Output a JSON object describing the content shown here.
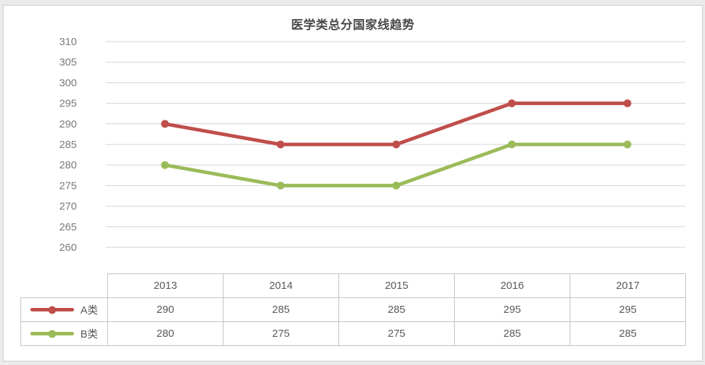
{
  "page": {
    "background_color": "#ebebeb",
    "panel_border_color": "#c9c9c9"
  },
  "chart_data": {
    "type": "line",
    "title": "医学类总分国家线趋势",
    "x": [
      "2013",
      "2014",
      "2015",
      "2016",
      "2017"
    ],
    "series": [
      {
        "name": "A类",
        "color": "#bf4e4b",
        "values": [
          290,
          285,
          285,
          295,
          295
        ]
      },
      {
        "name": "B类",
        "color": "#9bbb59",
        "values": [
          280,
          275,
          275,
          285,
          285
        ]
      }
    ],
    "ylim": [
      260,
      310
    ],
    "ytick_step": 5,
    "yticks": [
      310,
      305,
      300,
      295,
      290,
      285,
      280,
      275,
      270,
      265,
      260
    ],
    "grid": "horizontal-only",
    "gridline_color": "#d3d3d3",
    "axis_label_color": "#7a7a7a",
    "legend_position": "table-left-column",
    "xlabel": "",
    "ylabel": ""
  },
  "table": {
    "years": [
      "2013",
      "2014",
      "2015",
      "2016",
      "2017"
    ],
    "rows": [
      {
        "label": "A类",
        "color": "#bf4e4b",
        "values": [
          "290",
          "285",
          "285",
          "295",
          "295"
        ]
      },
      {
        "label": "B类",
        "color": "#9bbb59",
        "values": [
          "280",
          "275",
          "275",
          "285",
          "285"
        ]
      }
    ],
    "border_color": "#c3c3c3",
    "text_color": "#595959"
  }
}
